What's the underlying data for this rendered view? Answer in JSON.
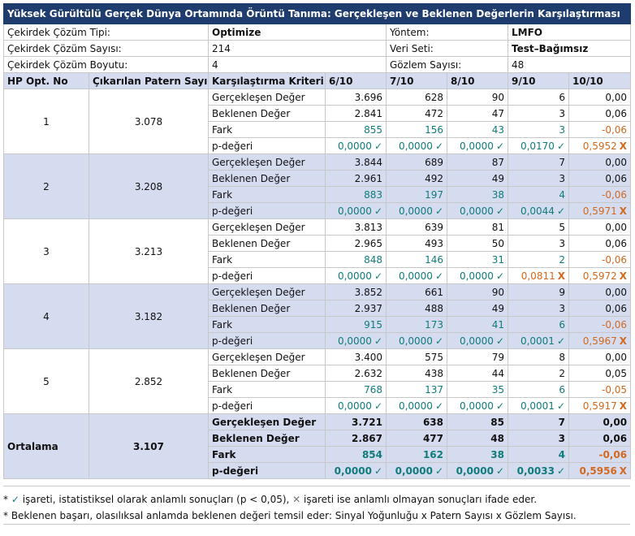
{
  "title": "Yüksek Gürültülü Gerçek Dünya Ortamında Örüntü Tanıma: Gerçekleşen ve Beklenen Değerlerin Karşılaştırması",
  "info": [
    {
      "label": "Çekirdek Çözüm Tipi:",
      "value": "Optimize",
      "bold": true,
      "label2": "Yöntem:",
      "value2": "LMFO",
      "bold2": true
    },
    {
      "label": "Çekirdek Çözüm Sayısı:",
      "value": "214",
      "bold": false,
      "label2": "Veri Seti:",
      "value2": "Test–Bağımsız",
      "bold2": true
    },
    {
      "label": "Çekirdek Çözüm Boyutu:",
      "value": "4",
      "bold": false,
      "label2": "Gözlem Sayısı:",
      "value2": "48",
      "bold2": false
    }
  ],
  "headers": [
    "HP Opt. No",
    "Çıkarılan Patern Sayısı",
    "Karşılaştırma Kriteri",
    "6/10",
    "7/10",
    "8/10",
    "9/10",
    "10/10"
  ],
  "criteria": [
    "Gerçekleşen Değer",
    "Beklenen Değer",
    "Fark",
    "p-değeri"
  ],
  "groups": [
    {
      "no": "1",
      "patterns": "3.078",
      "actual": [
        "3.696",
        "628",
        "90",
        "6",
        "0,00"
      ],
      "expected": [
        "2.841",
        "472",
        "47",
        "3",
        "0,06"
      ],
      "diff": [
        "855",
        "156",
        "43",
        "3",
        "-0,06"
      ],
      "p": [
        [
          "0,0000",
          "ok"
        ],
        [
          "0,0000",
          "ok"
        ],
        [
          "0,0000",
          "ok"
        ],
        [
          "0,0170",
          "ok"
        ],
        [
          "0,5952",
          "no"
        ]
      ]
    },
    {
      "no": "2",
      "patterns": "3.208",
      "actual": [
        "3.844",
        "689",
        "87",
        "7",
        "0,00"
      ],
      "expected": [
        "2.961",
        "492",
        "49",
        "3",
        "0,06"
      ],
      "diff": [
        "883",
        "197",
        "38",
        "4",
        "-0,06"
      ],
      "p": [
        [
          "0,0000",
          "ok"
        ],
        [
          "0,0000",
          "ok"
        ],
        [
          "0,0000",
          "ok"
        ],
        [
          "0,0044",
          "ok"
        ],
        [
          "0,5971",
          "no"
        ]
      ]
    },
    {
      "no": "3",
      "patterns": "3.213",
      "actual": [
        "3.813",
        "639",
        "81",
        "5",
        "0,00"
      ],
      "expected": [
        "2.965",
        "493",
        "50",
        "3",
        "0,06"
      ],
      "diff": [
        "848",
        "146",
        "31",
        "2",
        "-0,06"
      ],
      "p": [
        [
          "0,0000",
          "ok"
        ],
        [
          "0,0000",
          "ok"
        ],
        [
          "0,0000",
          "ok"
        ],
        [
          "0,0811",
          "no"
        ],
        [
          "0,5972",
          "no"
        ]
      ]
    },
    {
      "no": "4",
      "patterns": "3.182",
      "actual": [
        "3.852",
        "661",
        "90",
        "9",
        "0,00"
      ],
      "expected": [
        "2.937",
        "488",
        "49",
        "3",
        "0,06"
      ],
      "diff": [
        "915",
        "173",
        "41",
        "6",
        "-0,06"
      ],
      "p": [
        [
          "0,0000",
          "ok"
        ],
        [
          "0,0000",
          "ok"
        ],
        [
          "0,0000",
          "ok"
        ],
        [
          "0,0001",
          "ok"
        ],
        [
          "0,5967",
          "no"
        ]
      ]
    },
    {
      "no": "5",
      "patterns": "2.852",
      "actual": [
        "3.400",
        "575",
        "79",
        "8",
        "0,00"
      ],
      "expected": [
        "2.632",
        "438",
        "44",
        "2",
        "0,05"
      ],
      "diff": [
        "768",
        "137",
        "35",
        "6",
        "-0,05"
      ],
      "p": [
        [
          "0,0000",
          "ok"
        ],
        [
          "0,0000",
          "ok"
        ],
        [
          "0,0000",
          "ok"
        ],
        [
          "0,0001",
          "ok"
        ],
        [
          "0,5917",
          "no"
        ]
      ]
    }
  ],
  "average": {
    "label": "Ortalama",
    "patterns": "3.107",
    "actual": [
      "3.721",
      "638",
      "85",
      "7",
      "0,00"
    ],
    "expected": [
      "2.867",
      "477",
      "48",
      "3",
      "0,06"
    ],
    "diff": [
      "854",
      "162",
      "38",
      "4",
      "-0,06"
    ],
    "p": [
      [
        "0,0000",
        "ok"
      ],
      [
        "0,0000",
        "ok"
      ],
      [
        "0,0000",
        "ok"
      ],
      [
        "0,0033",
        "ok"
      ],
      [
        "0,5956",
        "no"
      ]
    ]
  },
  "marks": {
    "ok": "✓",
    "no": "X"
  },
  "notes": {
    "line1_prefix": "* ",
    "line1_check": "✓",
    "line1_mid": " işareti, istatistiksel olarak anlamlı sonuçları (p < 0,05), ",
    "line1_cross": "✕",
    "line1_end": " işareti ise anlamlı olmayan sonuçları ifade eder.",
    "line2": "* Beklenen başarı, olasılıksal anlamda beklenen değeri temsil eder: Sinyal Yoğunluğu x Patern Sayısı x Gözlem Sayısı."
  },
  "colors": {
    "header_bg": "#1f3c6e",
    "band": "#d5dcf0",
    "teal": "#0f7b7a",
    "orange": "#d2691e"
  }
}
